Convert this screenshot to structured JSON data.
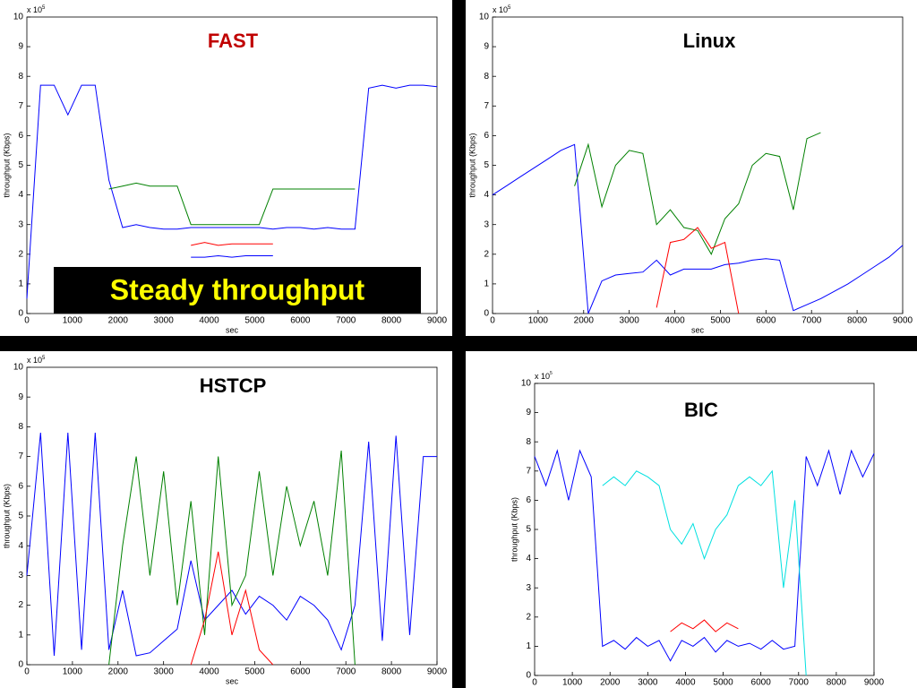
{
  "chart_data": [
    {
      "type": "line",
      "title": "FAST",
      "title_color": "#c00000",
      "xlabel": "sec",
      "ylabel": "throughput (Kbps)",
      "y_scale_label": "x 10",
      "y_scale_exponent": "5",
      "annotation": "Steady throughput",
      "x": [
        0,
        300,
        600,
        900,
        1200,
        1500,
        1800,
        2100,
        2400,
        2700,
        3000,
        3300,
        3600,
        3900,
        4200,
        4500,
        4800,
        5100,
        5400,
        5700,
        6000,
        6300,
        6600,
        6900,
        7200,
        7500,
        7800,
        8100,
        8400,
        8700,
        9000
      ],
      "xlim": [
        0,
        9000
      ],
      "xticks": [
        0,
        1000,
        2000,
        3000,
        4000,
        5000,
        6000,
        7000,
        8000,
        9000
      ],
      "ylim": [
        0,
        10
      ],
      "yticks": [
        0,
        1,
        2,
        3,
        4,
        5,
        6,
        7,
        8,
        9,
        10
      ],
      "series": [
        {
          "color": "#0000ff",
          "values": [
            0.5,
            7.7,
            7.7,
            6.7,
            7.7,
            7.7,
            4.5,
            2.9,
            3.0,
            2.9,
            2.85,
            2.85,
            2.9,
            2.9,
            2.9,
            2.9,
            2.9,
            2.9,
            2.85,
            2.9,
            2.9,
            2.85,
            2.9,
            2.85,
            2.85,
            7.6,
            7.7,
            7.6,
            7.7,
            7.7,
            7.65
          ]
        },
        {
          "color": "#008000",
          "values": [
            null,
            null,
            null,
            null,
            null,
            null,
            4.2,
            4.3,
            4.4,
            4.3,
            4.3,
            4.3,
            3.0,
            3.0,
            3.0,
            3.0,
            3.0,
            3.0,
            4.2,
            4.2,
            4.2,
            4.2,
            4.2,
            4.2,
            4.2,
            null,
            null,
            null,
            null,
            null,
            null
          ]
        },
        {
          "color": "#ff0000",
          "values": [
            null,
            null,
            null,
            null,
            null,
            null,
            null,
            null,
            null,
            null,
            null,
            null,
            2.3,
            2.4,
            2.3,
            2.35,
            2.35,
            2.35,
            2.35,
            null,
            null,
            null,
            null,
            null,
            null,
            null,
            null,
            null,
            null,
            null,
            null
          ]
        },
        {
          "color": "#0000ff",
          "values": [
            null,
            null,
            null,
            null,
            null,
            null,
            null,
            null,
            null,
            null,
            null,
            null,
            1.9,
            1.9,
            1.95,
            1.9,
            1.95,
            1.95,
            1.95,
            null,
            null,
            null,
            null,
            null,
            null,
            null,
            null,
            null,
            null,
            null,
            null
          ]
        }
      ]
    },
    {
      "type": "line",
      "title": "Linux",
      "title_color": "#000000",
      "xlabel": "sec",
      "ylabel": "throughput (Kbps)",
      "y_scale_label": "x 10",
      "y_scale_exponent": "5",
      "x": [
        0,
        300,
        600,
        900,
        1200,
        1500,
        1800,
        2100,
        2400,
        2700,
        3000,
        3300,
        3600,
        3900,
        4200,
        4500,
        4800,
        5100,
        5400,
        5700,
        6000,
        6300,
        6600,
        6900,
        7200,
        7500,
        7800,
        8100,
        8400,
        8700,
        9000
      ],
      "xlim": [
        0,
        9000
      ],
      "xticks": [
        0,
        1000,
        2000,
        3000,
        4000,
        5000,
        6000,
        7000,
        8000,
        9000
      ],
      "ylim": [
        0,
        10
      ],
      "yticks": [
        0,
        1,
        2,
        3,
        4,
        5,
        6,
        7,
        8,
        9,
        10
      ],
      "series": [
        {
          "color": "#0000ff",
          "values": [
            4.0,
            4.3,
            4.6,
            4.9,
            5.2,
            5.5,
            5.7,
            0,
            1.1,
            1.3,
            1.35,
            1.4,
            1.8,
            1.3,
            1.5,
            1.5,
            1.5,
            1.65,
            1.7,
            1.8,
            1.85,
            1.8,
            0.1,
            0.3,
            0.5,
            0.75,
            1.0,
            1.3,
            1.6,
            1.9,
            2.3
          ]
        },
        {
          "color": "#008000",
          "values": [
            null,
            null,
            null,
            null,
            null,
            null,
            4.3,
            5.7,
            3.6,
            5.0,
            5.5,
            5.4,
            3.0,
            3.5,
            2.9,
            2.8,
            2.0,
            3.2,
            3.7,
            5.0,
            5.4,
            5.3,
            3.5,
            5.9,
            6.1,
            null,
            null,
            null,
            null,
            null,
            null
          ]
        },
        {
          "color": "#ff0000",
          "values": [
            null,
            null,
            null,
            null,
            null,
            null,
            null,
            null,
            null,
            null,
            null,
            null,
            0.2,
            2.4,
            2.5,
            2.9,
            2.2,
            2.4,
            0,
            null,
            null,
            null,
            null,
            null,
            null,
            null,
            null,
            null,
            null,
            null,
            null
          ]
        }
      ]
    },
    {
      "type": "line",
      "title": "HSTCP",
      "title_color": "#000000",
      "xlabel": "sec",
      "ylabel": "throughput (Kbps)",
      "y_scale_label": "x 10",
      "y_scale_exponent": "5",
      "x": [
        0,
        300,
        600,
        900,
        1200,
        1500,
        1800,
        2100,
        2400,
        2700,
        3000,
        3300,
        3600,
        3900,
        4200,
        4500,
        4800,
        5100,
        5400,
        5700,
        6000,
        6300,
        6600,
        6900,
        7200,
        7500,
        7800,
        8100,
        8400,
        8700,
        9000
      ],
      "xlim": [
        0,
        9000
      ],
      "xticks": [
        0,
        1000,
        2000,
        3000,
        4000,
        5000,
        6000,
        7000,
        8000,
        9000
      ],
      "ylim": [
        0,
        10
      ],
      "yticks": [
        0,
        1,
        2,
        3,
        4,
        5,
        6,
        7,
        8,
        9,
        10
      ],
      "series": [
        {
          "color": "#0000ff",
          "values": [
            3,
            7.8,
            0.3,
            7.8,
            0.5,
            7.8,
            0.5,
            2.5,
            0.3,
            0.4,
            0.8,
            1.2,
            3.5,
            1.5,
            2.0,
            2.5,
            1.7,
            2.3,
            2.0,
            1.5,
            2.3,
            2.0,
            1.5,
            0.5,
            2.0,
            7.5,
            0.8,
            7.7,
            1.0,
            7.0,
            7.0
          ]
        },
        {
          "color": "#008000",
          "values": [
            null,
            null,
            null,
            null,
            null,
            null,
            0,
            4.0,
            7.0,
            3.0,
            6.5,
            2.0,
            5.5,
            1.0,
            7.0,
            2.0,
            3.0,
            6.5,
            3.0,
            6.0,
            4.0,
            5.5,
            3.0,
            7.2,
            0,
            null,
            null,
            null,
            null,
            null,
            null
          ]
        },
        {
          "color": "#ff0000",
          "values": [
            null,
            null,
            null,
            null,
            null,
            null,
            null,
            null,
            null,
            null,
            null,
            null,
            0,
            1.5,
            3.8,
            1.0,
            2.5,
            0.5,
            0,
            null,
            null,
            null,
            null,
            null,
            null,
            null,
            null,
            null,
            null,
            null,
            null
          ]
        }
      ]
    },
    {
      "type": "line",
      "title": "BIC",
      "title_color": "#000000",
      "ylabel": "throughput (Kbps)",
      "y_scale_label": "x 10",
      "y_scale_exponent": "5",
      "x": [
        0,
        300,
        600,
        900,
        1200,
        1500,
        1800,
        2100,
        2400,
        2700,
        3000,
        3300,
        3600,
        3900,
        4200,
        4500,
        4800,
        5100,
        5400,
        5700,
        6000,
        6300,
        6600,
        6900,
        7200,
        7500,
        7800,
        8100,
        8400,
        8700,
        9000
      ],
      "xlim": [
        0,
        9000
      ],
      "xticks": [
        0,
        1000,
        2000,
        3000,
        4000,
        5000,
        6000,
        7000,
        8000,
        9000
      ],
      "ylim": [
        0,
        10
      ],
      "yticks": [
        0,
        1,
        2,
        3,
        4,
        5,
        6,
        7,
        8,
        9,
        10
      ],
      "series": [
        {
          "color": "#0000ff",
          "values": [
            7.5,
            6.5,
            7.7,
            6.0,
            7.7,
            6.8,
            1.0,
            1.2,
            0.9,
            1.3,
            1.0,
            1.2,
            0.5,
            1.2,
            1.0,
            1.3,
            0.8,
            1.2,
            1.0,
            1.1,
            0.9,
            1.2,
            0.9,
            1.0,
            7.5,
            6.5,
            7.7,
            6.2,
            7.7,
            6.8,
            7.6
          ]
        },
        {
          "color": "#00e0e0",
          "values": [
            null,
            null,
            null,
            null,
            null,
            null,
            6.5,
            6.8,
            6.5,
            7.0,
            6.8,
            6.5,
            5.0,
            4.5,
            5.2,
            4.0,
            5.0,
            5.5,
            6.5,
            6.8,
            6.5,
            7.0,
            3.0,
            6.0,
            0,
            null,
            null,
            null,
            null,
            null,
            null
          ]
        },
        {
          "color": "#ff0000",
          "values": [
            null,
            null,
            null,
            null,
            null,
            null,
            null,
            null,
            null,
            null,
            null,
            null,
            1.5,
            1.8,
            1.6,
            1.9,
            1.5,
            1.8,
            1.6,
            null,
            null,
            null,
            null,
            null,
            null,
            null,
            null,
            null,
            null,
            null,
            null
          ]
        }
      ]
    }
  ]
}
